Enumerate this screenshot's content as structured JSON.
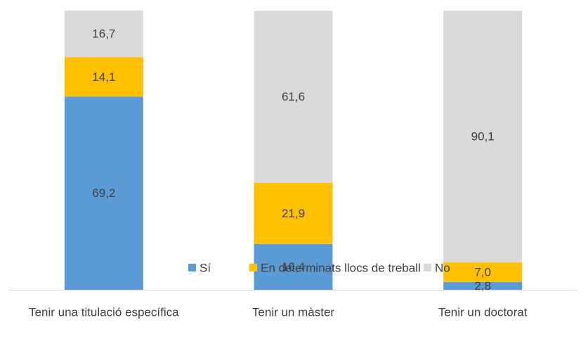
{
  "chart_data": {
    "type": "stacked_bar",
    "categories": [
      "Tenir una titulació específica",
      "Tenir un màster",
      "Tenir un doctorat"
    ],
    "series": [
      {
        "name": "Sí",
        "color": "#5b9bd5",
        "values": [
          69.2,
          16.4,
          2.8
        ],
        "value_labels": [
          "69,2",
          "16,4",
          "2,8"
        ]
      },
      {
        "name": "En determinats llocs de treball",
        "color": "#ffc000",
        "values": [
          14.1,
          21.9,
          7.0
        ],
        "value_labels": [
          "14,1",
          "21,9",
          "7,0"
        ]
      },
      {
        "name": "No",
        "color": "#d9d9d9",
        "values": [
          16.7,
          61.6,
          90.1
        ],
        "value_labels": [
          "16,7",
          "61,6",
          "90,1"
        ]
      }
    ],
    "ylim": [
      0,
      100
    ]
  }
}
